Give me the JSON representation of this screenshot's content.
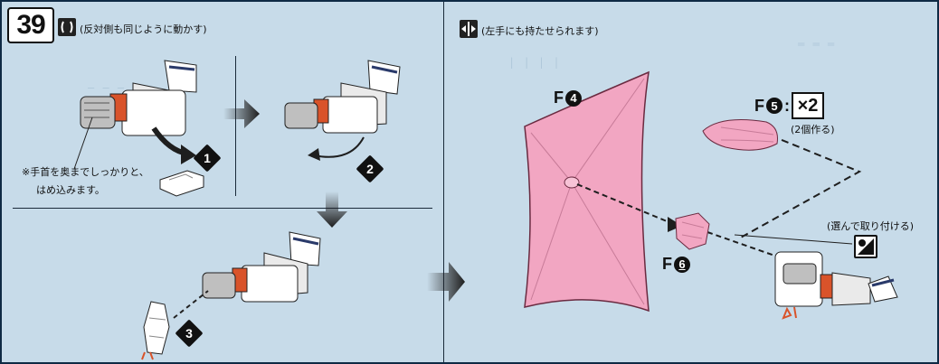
{
  "step_number": "39",
  "left_panel": {
    "instruction": "(反対側も同じように動かす)",
    "wrist_note_line1": "※手首を奥までしっかりと、",
    "wrist_note_line2": "はめ込みます。",
    "step_markers": [
      "1",
      "2",
      "3"
    ]
  },
  "right_panel": {
    "instruction": "(左手にも持たせられます)",
    "f4_label": "F",
    "f4_number": "4",
    "f5_label": "F",
    "f5_number": "5",
    "f5_colon": ":",
    "f5_multiplier": "×2",
    "f5_note": "(2個作る)",
    "f6_label": "F",
    "f6_number": "6",
    "choose_note": "(選んで取り付ける)"
  },
  "colors": {
    "background": "#c7dbe9",
    "pink_part": "#f2a6c2",
    "pink_stroke": "#6a2a40",
    "orange_accent": "#d9532a",
    "arrow_dark": "#1e1e1e"
  },
  "icons": [
    "move-both-sides-icon",
    "left-hand-icon",
    "choose-one-icon"
  ]
}
